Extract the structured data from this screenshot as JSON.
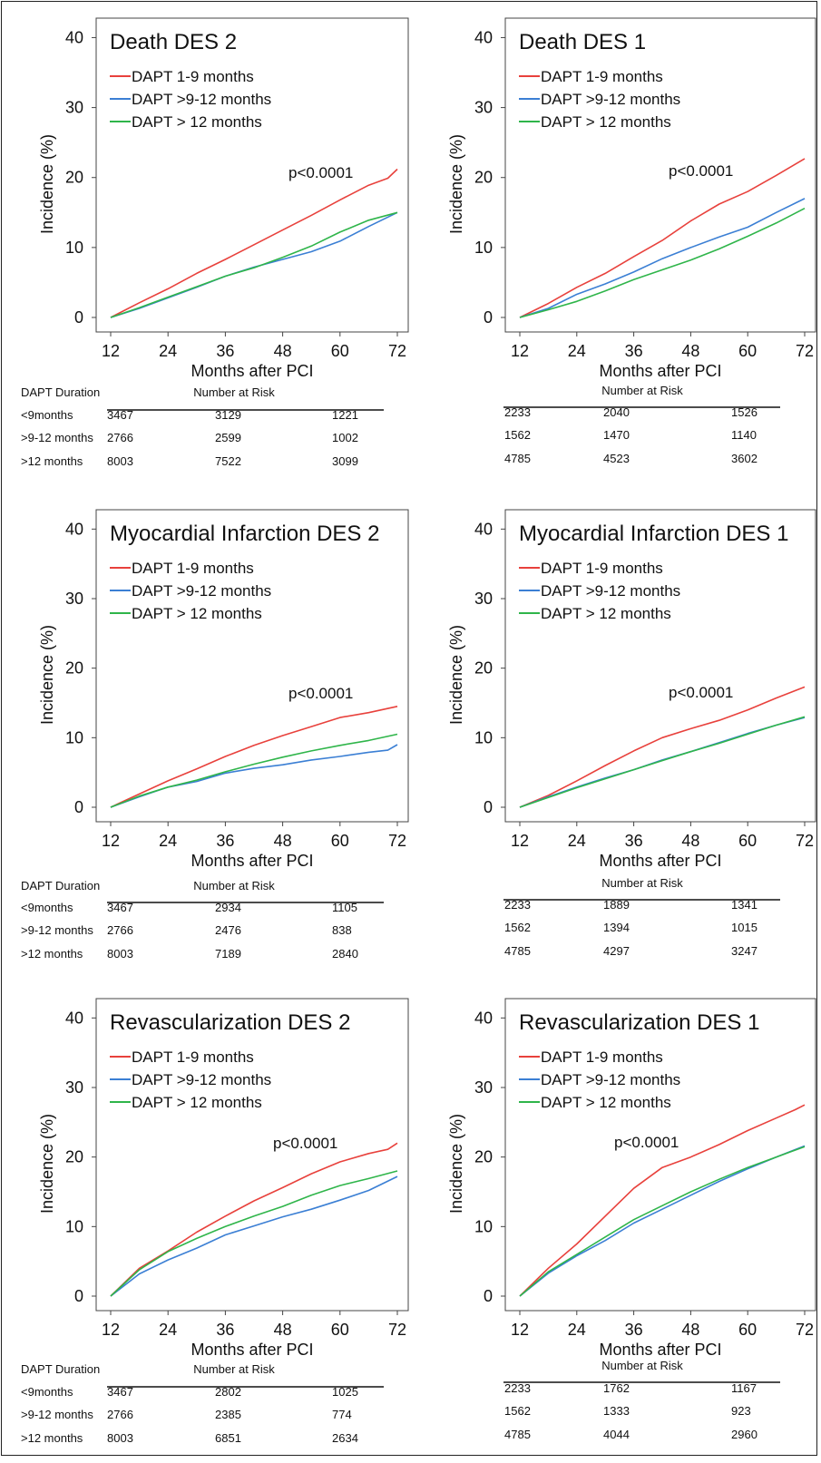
{
  "chart_data": [
    {
      "type": "line",
      "title": "Death DES 2",
      "xlabel": "Months after PCI",
      "ylabel": "Incidence (%)",
      "xlim": [
        12,
        72
      ],
      "ylim": [
        0,
        40
      ],
      "x_ticks": [
        "12",
        "24",
        "36",
        "48",
        "60",
        "72"
      ],
      "y_ticks": [
        "0",
        "10",
        "20",
        "30",
        "40"
      ],
      "annotation": "p<0.0001",
      "legend_position": "top-left",
      "series": [
        {
          "name": "DAPT 1-9 months",
          "color": "#e8413c",
          "x": [
            12,
            18,
            24,
            30,
            36,
            42,
            48,
            54,
            60,
            66,
            70,
            72
          ],
          "y": [
            0,
            2.1,
            4.1,
            6.3,
            8.3,
            10.4,
            12.5,
            14.6,
            16.8,
            18.9,
            19.9,
            21.2
          ]
        },
        {
          "name": "DAPT >9-12 months",
          "color": "#3b7fd4",
          "x": [
            12,
            18,
            24,
            30,
            36,
            42,
            48,
            54,
            60,
            66,
            72
          ],
          "y": [
            0,
            1.3,
            2.8,
            4.3,
            5.9,
            7.2,
            8.3,
            9.4,
            10.9,
            13.0,
            15.0
          ]
        },
        {
          "name": "DAPT > 12 months",
          "color": "#2fb54a",
          "x": [
            12,
            18,
            24,
            30,
            36,
            42,
            48,
            54,
            60,
            66,
            72
          ],
          "y": [
            0,
            1.4,
            2.9,
            4.4,
            5.9,
            7.1,
            8.6,
            10.2,
            12.2,
            13.9,
            15.0
          ]
        }
      ],
      "risk_table": {
        "header": "DAPT Duration",
        "title": "Number at Risk",
        "rows": [
          {
            "label": "<9months",
            "values": [
              "3467",
              "3129",
              "1221"
            ]
          },
          {
            "label": ">9-12 months",
            "values": [
              "2766",
              "2599",
              "1002"
            ]
          },
          {
            "label": ">12 months",
            "values": [
              "8003",
              "7522",
              "3099"
            ]
          }
        ]
      }
    },
    {
      "type": "line",
      "title": "Death DES 1",
      "xlabel": "Months after PCI",
      "ylabel": "Incidence (%)",
      "xlim": [
        12,
        72
      ],
      "ylim": [
        0,
        40
      ],
      "x_ticks": [
        "12",
        "24",
        "36",
        "48",
        "60",
        "72"
      ],
      "y_ticks": [
        "0",
        "10",
        "20",
        "30",
        "40"
      ],
      "annotation": "p<0.0001",
      "legend_position": "top-left",
      "series": [
        {
          "name": "DAPT 1-9 months",
          "color": "#e8413c",
          "x": [
            12,
            18,
            24,
            30,
            36,
            42,
            48,
            54,
            60,
            66,
            72
          ],
          "y": [
            0,
            2.0,
            4.3,
            6.3,
            8.7,
            11.0,
            13.8,
            16.2,
            18.0,
            20.3,
            22.7
          ]
        },
        {
          "name": "DAPT >9-12 months",
          "color": "#3b7fd4",
          "x": [
            12,
            18,
            24,
            30,
            36,
            42,
            48,
            54,
            60,
            66,
            72
          ],
          "y": [
            0,
            1.3,
            3.3,
            4.8,
            6.5,
            8.4,
            10.0,
            11.5,
            12.9,
            15.0,
            17.0
          ]
        },
        {
          "name": "DAPT > 12 months",
          "color": "#2fb54a",
          "x": [
            12,
            18,
            24,
            30,
            36,
            42,
            48,
            54,
            60,
            66,
            72
          ],
          "y": [
            0,
            1.1,
            2.3,
            3.8,
            5.4,
            6.8,
            8.2,
            9.8,
            11.6,
            13.5,
            15.6
          ]
        }
      ],
      "risk_table": {
        "header": "",
        "title": "Number at Risk",
        "rows": [
          {
            "label": "",
            "values": [
              "2233",
              "2040",
              "1526"
            ]
          },
          {
            "label": "",
            "values": [
              "1562",
              "1470",
              "1140"
            ]
          },
          {
            "label": "",
            "values": [
              "4785",
              "4523",
              "3602"
            ]
          }
        ]
      }
    },
    {
      "type": "line",
      "title": "Myocardial Infarction DES 2",
      "xlabel": "Months after PCI",
      "ylabel": "Incidence (%)",
      "xlim": [
        12,
        72
      ],
      "ylim": [
        0,
        40
      ],
      "x_ticks": [
        "12",
        "24",
        "36",
        "48",
        "60",
        "72"
      ],
      "y_ticks": [
        "0",
        "10",
        "20",
        "30",
        "40"
      ],
      "annotation": "p<0.0001",
      "legend_position": "top-left",
      "series": [
        {
          "name": "DAPT 1-9 months",
          "color": "#e8413c",
          "x": [
            12,
            18,
            24,
            30,
            36,
            42,
            48,
            54,
            60,
            66,
            72
          ],
          "y": [
            0,
            1.9,
            3.8,
            5.5,
            7.3,
            8.9,
            10.3,
            11.6,
            12.9,
            13.6,
            14.5
          ]
        },
        {
          "name": "DAPT >9-12 months",
          "color": "#3b7fd4",
          "x": [
            12,
            18,
            24,
            30,
            36,
            42,
            48,
            54,
            60,
            66,
            70,
            72
          ],
          "y": [
            0,
            1.5,
            2.9,
            3.7,
            4.9,
            5.6,
            6.1,
            6.8,
            7.3,
            7.9,
            8.2,
            9.0
          ]
        },
        {
          "name": "DAPT > 12 months",
          "color": "#2fb54a",
          "x": [
            12,
            18,
            24,
            30,
            36,
            42,
            48,
            54,
            60,
            66,
            72
          ],
          "y": [
            0,
            1.6,
            2.9,
            3.9,
            5.1,
            6.2,
            7.2,
            8.1,
            8.9,
            9.6,
            10.5
          ]
        }
      ],
      "risk_table": {
        "header": "DAPT Duration",
        "title": "Number at Risk",
        "rows": [
          {
            "label": "<9months",
            "values": [
              "3467",
              "2934",
              "1105"
            ]
          },
          {
            "label": ">9-12 months",
            "values": [
              "2766",
              "2476",
              "838"
            ]
          },
          {
            "label": ">12 months",
            "values": [
              "8003",
              "7189",
              "2840"
            ]
          }
        ]
      }
    },
    {
      "type": "line",
      "title": "Myocardial Infarction DES 1",
      "xlabel": "Months after PCI",
      "ylabel": "Incidence (%)",
      "xlim": [
        12,
        72
      ],
      "ylim": [
        0,
        40
      ],
      "x_ticks": [
        "12",
        "24",
        "36",
        "48",
        "60",
        "72"
      ],
      "y_ticks": [
        "0",
        "10",
        "20",
        "30",
        "40"
      ],
      "annotation": "p<0.0001",
      "legend_position": "top-left",
      "series": [
        {
          "name": "DAPT 1-9 months",
          "color": "#e8413c",
          "x": [
            12,
            18,
            24,
            30,
            36,
            42,
            48,
            54,
            60,
            66,
            72
          ],
          "y": [
            0,
            1.7,
            3.8,
            6.0,
            8.1,
            10.0,
            11.3,
            12.5,
            14.0,
            15.7,
            17.3
          ]
        },
        {
          "name": "DAPT >9-12 months",
          "color": "#3b7fd4",
          "x": [
            12,
            18,
            24,
            30,
            36,
            42,
            48,
            54,
            60,
            66,
            72
          ],
          "y": [
            0,
            1.5,
            2.9,
            4.2,
            5.4,
            6.8,
            8.0,
            9.3,
            10.6,
            11.8,
            12.9
          ]
        },
        {
          "name": "DAPT > 12 months",
          "color": "#2fb54a",
          "x": [
            12,
            18,
            24,
            30,
            36,
            42,
            48,
            54,
            60,
            66,
            72
          ],
          "y": [
            0,
            1.4,
            2.8,
            4.1,
            5.4,
            6.7,
            8.0,
            9.2,
            10.5,
            11.8,
            13.0
          ]
        }
      ],
      "risk_table": {
        "header": "",
        "title": "Number at Risk",
        "rows": [
          {
            "label": "",
            "values": [
              "2233",
              "1889",
              "1341"
            ]
          },
          {
            "label": "",
            "values": [
              "1562",
              "1394",
              "1015"
            ]
          },
          {
            "label": "",
            "values": [
              "4785",
              "4297",
              "3247"
            ]
          }
        ]
      }
    },
    {
      "type": "line",
      "title": "Revascularization DES 2",
      "xlabel": "Months after PCI",
      "ylabel": "Incidence (%)",
      "xlim": [
        12,
        72
      ],
      "ylim": [
        0,
        40
      ],
      "x_ticks": [
        "12",
        "24",
        "36",
        "48",
        "60",
        "72"
      ],
      "y_ticks": [
        "0",
        "10",
        "20",
        "30",
        "40"
      ],
      "annotation": "p<0.0001",
      "legend_position": "top-left",
      "series": [
        {
          "name": "DAPT 1-9 months",
          "color": "#e8413c",
          "x": [
            12,
            18,
            24,
            30,
            36,
            42,
            48,
            54,
            60,
            66,
            70,
            72
          ],
          "y": [
            0,
            4.0,
            6.5,
            9.2,
            11.5,
            13.7,
            15.6,
            17.6,
            19.3,
            20.5,
            21.1,
            22.0
          ]
        },
        {
          "name": "DAPT >9-12 months",
          "color": "#3b7fd4",
          "x": [
            12,
            18,
            24,
            30,
            36,
            42,
            48,
            54,
            60,
            66,
            72
          ],
          "y": [
            0,
            3.2,
            5.2,
            6.9,
            8.8,
            10.1,
            11.4,
            12.5,
            13.8,
            15.2,
            17.2
          ]
        },
        {
          "name": "DAPT > 12 months",
          "color": "#2fb54a",
          "x": [
            12,
            18,
            24,
            30,
            36,
            42,
            48,
            54,
            60,
            66,
            72
          ],
          "y": [
            0,
            3.8,
            6.4,
            8.3,
            10.0,
            11.5,
            12.9,
            14.5,
            15.9,
            16.9,
            18.0
          ]
        }
      ],
      "risk_table": {
        "header": "DAPT Duration",
        "title": "Number at Risk",
        "rows": [
          {
            "label": "<9months",
            "values": [
              "3467",
              "2802",
              "1025"
            ]
          },
          {
            "label": ">9-12 months",
            "values": [
              "2766",
              "2385",
              "774"
            ]
          },
          {
            "label": ">12 months",
            "values": [
              "8003",
              "6851",
              "2634"
            ]
          }
        ]
      }
    },
    {
      "type": "line",
      "title": "Revascularization DES 1",
      "xlabel": "Months after PCI",
      "ylabel": "Incidence (%)",
      "xlim": [
        12,
        72
      ],
      "ylim": [
        0,
        40
      ],
      "x_ticks": [
        "12",
        "24",
        "36",
        "48",
        "60",
        "72"
      ],
      "y_ticks": [
        "0",
        "10",
        "20",
        "30",
        "40"
      ],
      "annotation": "p<0.0001",
      "legend_position": "top-left",
      "series": [
        {
          "name": "DAPT 1-9 months",
          "color": "#e8413c",
          "x": [
            12,
            18,
            24,
            30,
            36,
            42,
            48,
            54,
            60,
            66,
            70,
            72
          ],
          "y": [
            0,
            4.0,
            7.5,
            11.5,
            15.5,
            18.5,
            20.0,
            21.8,
            23.8,
            25.6,
            26.8,
            27.5
          ]
        },
        {
          "name": "DAPT >9-12 months",
          "color": "#3b7fd4",
          "x": [
            12,
            18,
            24,
            30,
            36,
            42,
            48,
            54,
            60,
            66,
            72
          ],
          "y": [
            0,
            3.3,
            5.8,
            8.0,
            10.5,
            12.5,
            14.5,
            16.5,
            18.3,
            20.0,
            21.6
          ]
        },
        {
          "name": "DAPT > 12 months",
          "color": "#2fb54a",
          "x": [
            12,
            18,
            24,
            30,
            36,
            42,
            48,
            54,
            60,
            66,
            72
          ],
          "y": [
            0,
            3.5,
            6.0,
            8.5,
            11.0,
            13.0,
            15.0,
            16.8,
            18.5,
            20.0,
            21.5
          ]
        }
      ],
      "risk_table": {
        "header": "",
        "title": "Number at Risk",
        "rows": [
          {
            "label": "",
            "values": [
              "2233",
              "1762",
              "1167"
            ]
          },
          {
            "label": "",
            "values": [
              "1562",
              "1333",
              "923"
            ]
          },
          {
            "label": "",
            "values": [
              "4785",
              "4044",
              "2960"
            ]
          }
        ]
      }
    }
  ]
}
